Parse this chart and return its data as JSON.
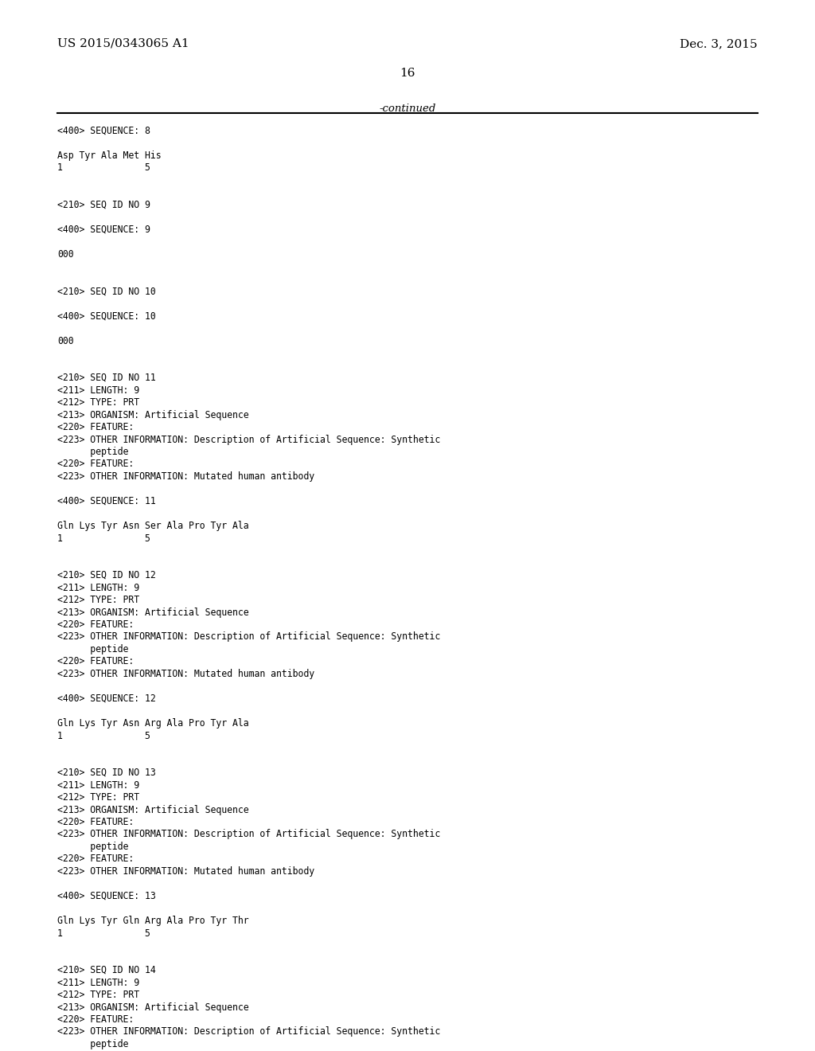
{
  "header_left": "US 2015/0343065 A1",
  "header_right": "Dec. 3, 2015",
  "page_number": "16",
  "continued_text": "-continued",
  "background_color": "#ffffff",
  "text_color": "#000000",
  "line_color": "#000000",
  "header_fontsize": 11,
  "page_num_fontsize": 11,
  "mono_fontsize": 8.3,
  "content_lines": [
    "<400> SEQUENCE: 8",
    "",
    "Asp Tyr Ala Met His",
    "1               5",
    "",
    "",
    "<210> SEQ ID NO 9",
    "",
    "<400> SEQUENCE: 9",
    "",
    "000",
    "",
    "",
    "<210> SEQ ID NO 10",
    "",
    "<400> SEQUENCE: 10",
    "",
    "000",
    "",
    "",
    "<210> SEQ ID NO 11",
    "<211> LENGTH: 9",
    "<212> TYPE: PRT",
    "<213> ORGANISM: Artificial Sequence",
    "<220> FEATURE:",
    "<223> OTHER INFORMATION: Description of Artificial Sequence: Synthetic",
    "      peptide",
    "<220> FEATURE:",
    "<223> OTHER INFORMATION: Mutated human antibody",
    "",
    "<400> SEQUENCE: 11",
    "",
    "Gln Lys Tyr Asn Ser Ala Pro Tyr Ala",
    "1               5",
    "",
    "",
    "<210> SEQ ID NO 12",
    "<211> LENGTH: 9",
    "<212> TYPE: PRT",
    "<213> ORGANISM: Artificial Sequence",
    "<220> FEATURE:",
    "<223> OTHER INFORMATION: Description of Artificial Sequence: Synthetic",
    "      peptide",
    "<220> FEATURE:",
    "<223> OTHER INFORMATION: Mutated human antibody",
    "",
    "<400> SEQUENCE: 12",
    "",
    "Gln Lys Tyr Asn Arg Ala Pro Tyr Ala",
    "1               5",
    "",
    "",
    "<210> SEQ ID NO 13",
    "<211> LENGTH: 9",
    "<212> TYPE: PRT",
    "<213> ORGANISM: Artificial Sequence",
    "<220> FEATURE:",
    "<223> OTHER INFORMATION: Description of Artificial Sequence: Synthetic",
    "      peptide",
    "<220> FEATURE:",
    "<223> OTHER INFORMATION: Mutated human antibody",
    "",
    "<400> SEQUENCE: 13",
    "",
    "Gln Lys Tyr Gln Arg Ala Pro Tyr Thr",
    "1               5",
    "",
    "",
    "<210> SEQ ID NO 14",
    "<211> LENGTH: 9",
    "<212> TYPE: PRT",
    "<213> ORGANISM: Artificial Sequence",
    "<220> FEATURE:",
    "<223> OTHER INFORMATION: Description of Artificial Sequence: Synthetic",
    "      peptide"
  ]
}
